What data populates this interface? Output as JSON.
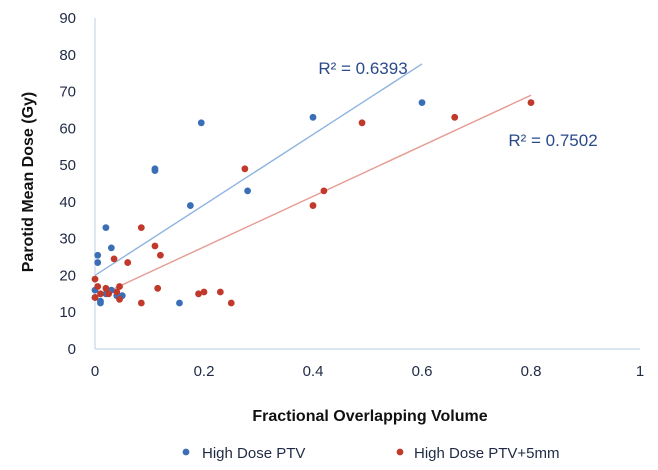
{
  "chart_data": {
    "type": "scatter",
    "title": "",
    "xlabel": "Fractional Overlapping Volume",
    "ylabel": "Parotid Mean Dose (Gy)",
    "xlim": [
      0,
      1
    ],
    "ylim": [
      0,
      90
    ],
    "x_ticks": [
      "0",
      "0.2",
      "0.4",
      "0.6",
      "0.8",
      "1"
    ],
    "y_ticks": [
      "0",
      "10",
      "20",
      "30",
      "40",
      "50",
      "60",
      "70",
      "80",
      "90"
    ],
    "grid": false,
    "legend_position": "bottom",
    "series": [
      {
        "name": "High Dose PTV",
        "color": "#3a6fb7",
        "points": [
          [
            0.0,
            14
          ],
          [
            0.0,
            16
          ],
          [
            0.005,
            25.5
          ],
          [
            0.005,
            23.5
          ],
          [
            0.01,
            13
          ],
          [
            0.01,
            12.5
          ],
          [
            0.02,
            15
          ],
          [
            0.02,
            33
          ],
          [
            0.03,
            27.5
          ],
          [
            0.03,
            16
          ],
          [
            0.04,
            14.5
          ],
          [
            0.05,
            14.5
          ],
          [
            0.11,
            49
          ],
          [
            0.11,
            48.5
          ],
          [
            0.155,
            12.5
          ],
          [
            0.175,
            39
          ],
          [
            0.195,
            61.5
          ],
          [
            0.28,
            43
          ],
          [
            0.4,
            63
          ],
          [
            0.6,
            67
          ]
        ],
        "trendline": {
          "x": [
            0,
            0.6
          ],
          "y": [
            20,
            77.5
          ],
          "r2_label": "R² = 0.6393"
        }
      },
      {
        "name": "High Dose PTV+5mm",
        "color": "#c0392b",
        "points": [
          [
            0.0,
            19
          ],
          [
            0.0,
            14
          ],
          [
            0.005,
            17
          ],
          [
            0.01,
            15
          ],
          [
            0.02,
            16.5
          ],
          [
            0.025,
            15
          ],
          [
            0.035,
            24.5
          ],
          [
            0.04,
            15.5
          ],
          [
            0.045,
            17
          ],
          [
            0.045,
            13.5
          ],
          [
            0.06,
            23.5
          ],
          [
            0.085,
            33
          ],
          [
            0.085,
            12.5
          ],
          [
            0.11,
            28
          ],
          [
            0.115,
            16.5
          ],
          [
            0.12,
            25.5
          ],
          [
            0.19,
            15
          ],
          [
            0.2,
            15.5
          ],
          [
            0.23,
            15.5
          ],
          [
            0.25,
            12.5
          ],
          [
            0.275,
            49
          ],
          [
            0.4,
            39
          ],
          [
            0.42,
            43
          ],
          [
            0.49,
            61.5
          ],
          [
            0.66,
            63
          ],
          [
            0.8,
            67
          ]
        ],
        "trendline": {
          "x": [
            0,
            0.8
          ],
          "y": [
            14,
            69
          ],
          "r2_label": "R² = 0.7502"
        }
      }
    ]
  }
}
